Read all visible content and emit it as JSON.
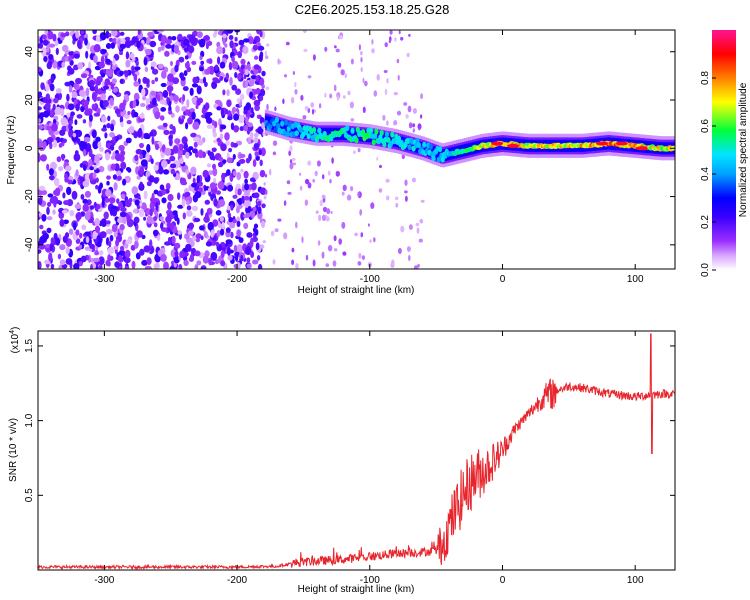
{
  "title": "C2E6.2025.153.18.25.G28",
  "chart_data": [
    {
      "type": "heatmap",
      "xlabel": "Height of straight line (km)",
      "ylabel": "Frequency (Hz)",
      "xlim": [
        -350,
        130
      ],
      "ylim": [
        -50,
        49
      ],
      "x_ticks": [
        -300,
        -200,
        -100,
        0,
        100
      ],
      "y_ticks": [
        -40,
        -20,
        0,
        20,
        40
      ],
      "grid": false,
      "colorbar": {
        "label": "Normalized spectral amplitude",
        "range": [
          0,
          1
        ],
        "ticks": [
          "0.0",
          "0.2",
          "0.4",
          "0.6",
          "0.8"
        ],
        "colors": [
          "#ffffff",
          "#9b30ff",
          "#0000ff",
          "#00e5ff",
          "#00ff3c",
          "#ffff00",
          "#ff7f00",
          "#ff0000",
          "#ff1493"
        ]
      },
      "noise_region_x": [
        -350,
        -180
      ],
      "sparse_region_x": [
        -180,
        -60
      ],
      "signal_track": {
        "x": [
          -178,
          -160,
          -140,
          -120,
          -100,
          -80,
          -60,
          -45,
          -30,
          -15,
          0,
          20,
          40,
          60,
          80,
          100,
          120,
          130
        ],
        "freq": [
          11,
          8,
          6,
          6,
          5,
          3,
          0,
          -3,
          -1,
          1,
          2,
          1,
          1,
          1,
          2,
          1,
          0,
          0
        ],
        "amplitude": [
          0.4,
          0.45,
          0.5,
          0.55,
          0.55,
          0.5,
          0.45,
          0.45,
          0.55,
          0.7,
          0.8,
          0.75,
          0.75,
          0.78,
          0.82,
          0.78,
          0.72,
          0.7
        ],
        "hotspots": [
          {
            "x": -4,
            "freq": 2
          },
          {
            "x": 8,
            "freq": 1
          },
          {
            "x": 75,
            "freq": 2
          },
          {
            "x": 90,
            "freq": 2
          },
          {
            "x": 105,
            "freq": 0
          }
        ]
      }
    },
    {
      "type": "line",
      "xlabel": "Height of straight line (km)",
      "ylabel": "SNR (10 * v/v)",
      "scale_label": "(x10",
      "scale_exp": "4",
      "scale_close": ")",
      "xlim": [
        -350,
        130
      ],
      "ylim": [
        0,
        1.6
      ],
      "x_ticks": [
        -300,
        -200,
        -100,
        0,
        100
      ],
      "y_ticks": [
        0.5,
        1.0,
        1.5
      ],
      "grid": false,
      "series": [
        {
          "color": "#e8252c",
          "x": [
            -350,
            -300,
            -250,
            -200,
            -170,
            -155,
            -140,
            -120,
            -100,
            -80,
            -60,
            -50,
            -45,
            -40,
            -35,
            -30,
            -25,
            -20,
            -15,
            -10,
            -5,
            0,
            5,
            10,
            20,
            30,
            40,
            50,
            60,
            70,
            80,
            90,
            100,
            110,
            120,
            130
          ],
          "y": [
            0.02,
            0.02,
            0.02,
            0.02,
            0.025,
            0.05,
            0.06,
            0.07,
            0.09,
            0.11,
            0.12,
            0.13,
            0.18,
            0.3,
            0.4,
            0.5,
            0.58,
            0.63,
            0.66,
            0.7,
            0.75,
            0.8,
            0.88,
            0.95,
            1.05,
            1.15,
            1.2,
            1.23,
            1.22,
            1.2,
            1.18,
            1.17,
            1.16,
            1.17,
            1.18,
            1.18
          ]
        }
      ],
      "spike": {
        "x": 112,
        "top": 1.58,
        "bottom": 0.78
      }
    }
  ]
}
